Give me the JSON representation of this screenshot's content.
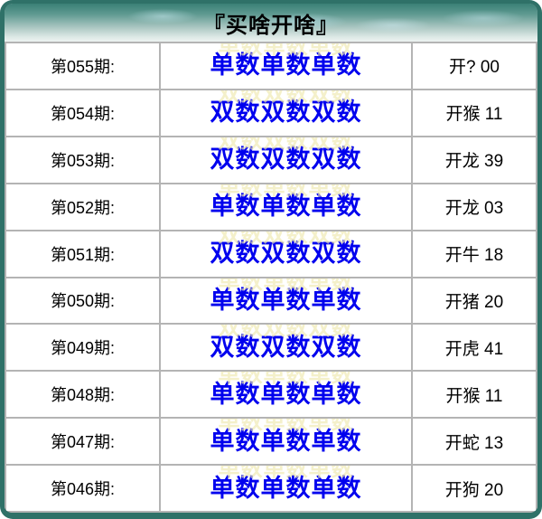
{
  "header": {
    "title": "『买啥开啥』"
  },
  "colors": {
    "frame_teal": "#2f7168",
    "header_gradient_top": "#3a8076",
    "header_gradient_bottom": "#edf3f1",
    "pick_blue": "#0000ee",
    "grid_line_gray": "#b4b4b4",
    "cell_background": "#ffffff"
  },
  "rows": [
    {
      "period": "第055期:",
      "pick": "单数单数单数",
      "result": "开? 00"
    },
    {
      "period": "第054期:",
      "pick": "双数双数双数",
      "result": "开猴 11"
    },
    {
      "period": "第053期:",
      "pick": "双数双数双数",
      "result": "开龙 39"
    },
    {
      "period": "第052期:",
      "pick": "单数单数单数",
      "result": "开龙 03"
    },
    {
      "period": "第051期:",
      "pick": "双数双数双数",
      "result": "开牛 18"
    },
    {
      "period": "第050期:",
      "pick": "单数单数单数",
      "result": "开猪 20"
    },
    {
      "period": "第049期:",
      "pick": "双数双数双数",
      "result": "开虎 41"
    },
    {
      "period": "第048期:",
      "pick": "单数单数单数",
      "result": "开猴 11"
    },
    {
      "period": "第047期:",
      "pick": "单数单数单数",
      "result": "开蛇 13"
    },
    {
      "period": "第046期:",
      "pick": "单数单数单数",
      "result": "开狗 20"
    }
  ]
}
